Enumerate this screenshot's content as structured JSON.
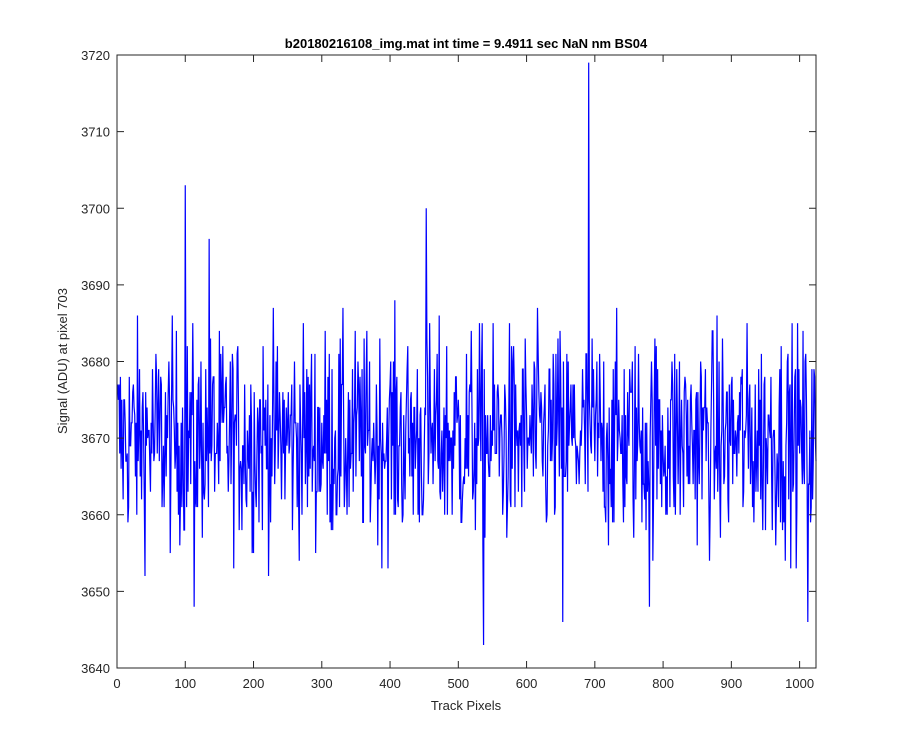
{
  "chart_data": {
    "type": "line",
    "title": "b20180216108_img.mat int time = 9.4911 sec  NaN nm BS04",
    "xlabel": "Track Pixels",
    "ylabel": "Signal (ADU) at pixel 703",
    "xlim": [
      0,
      1024
    ],
    "ylim": [
      3640,
      3720
    ],
    "xticks": [
      "0",
      "100",
      "200",
      "300",
      "400",
      "500",
      "600",
      "700",
      "800",
      "900",
      "1000"
    ],
    "yticks": [
      "3640",
      "3650",
      "3660",
      "3670",
      "3680",
      "3690",
      "3700",
      "3710",
      "3720"
    ],
    "grid": false,
    "series": [
      {
        "color": "#0000ff",
        "x_start": 1,
        "x_step": 1,
        "noise_level": 3670,
        "noise_amplitude": 7,
        "notable_points": [
          {
            "x": 100,
            "y": 3703
          },
          {
            "x": 113,
            "y": 3648
          },
          {
            "x": 135,
            "y": 3696
          },
          {
            "x": 453,
            "y": 3700
          },
          {
            "x": 537,
            "y": 3643
          },
          {
            "x": 653,
            "y": 3646
          },
          {
            "x": 691,
            "y": 3719
          },
          {
            "x": 780,
            "y": 3648
          },
          {
            "x": 1012,
            "y": 3646
          }
        ]
      }
    ]
  }
}
